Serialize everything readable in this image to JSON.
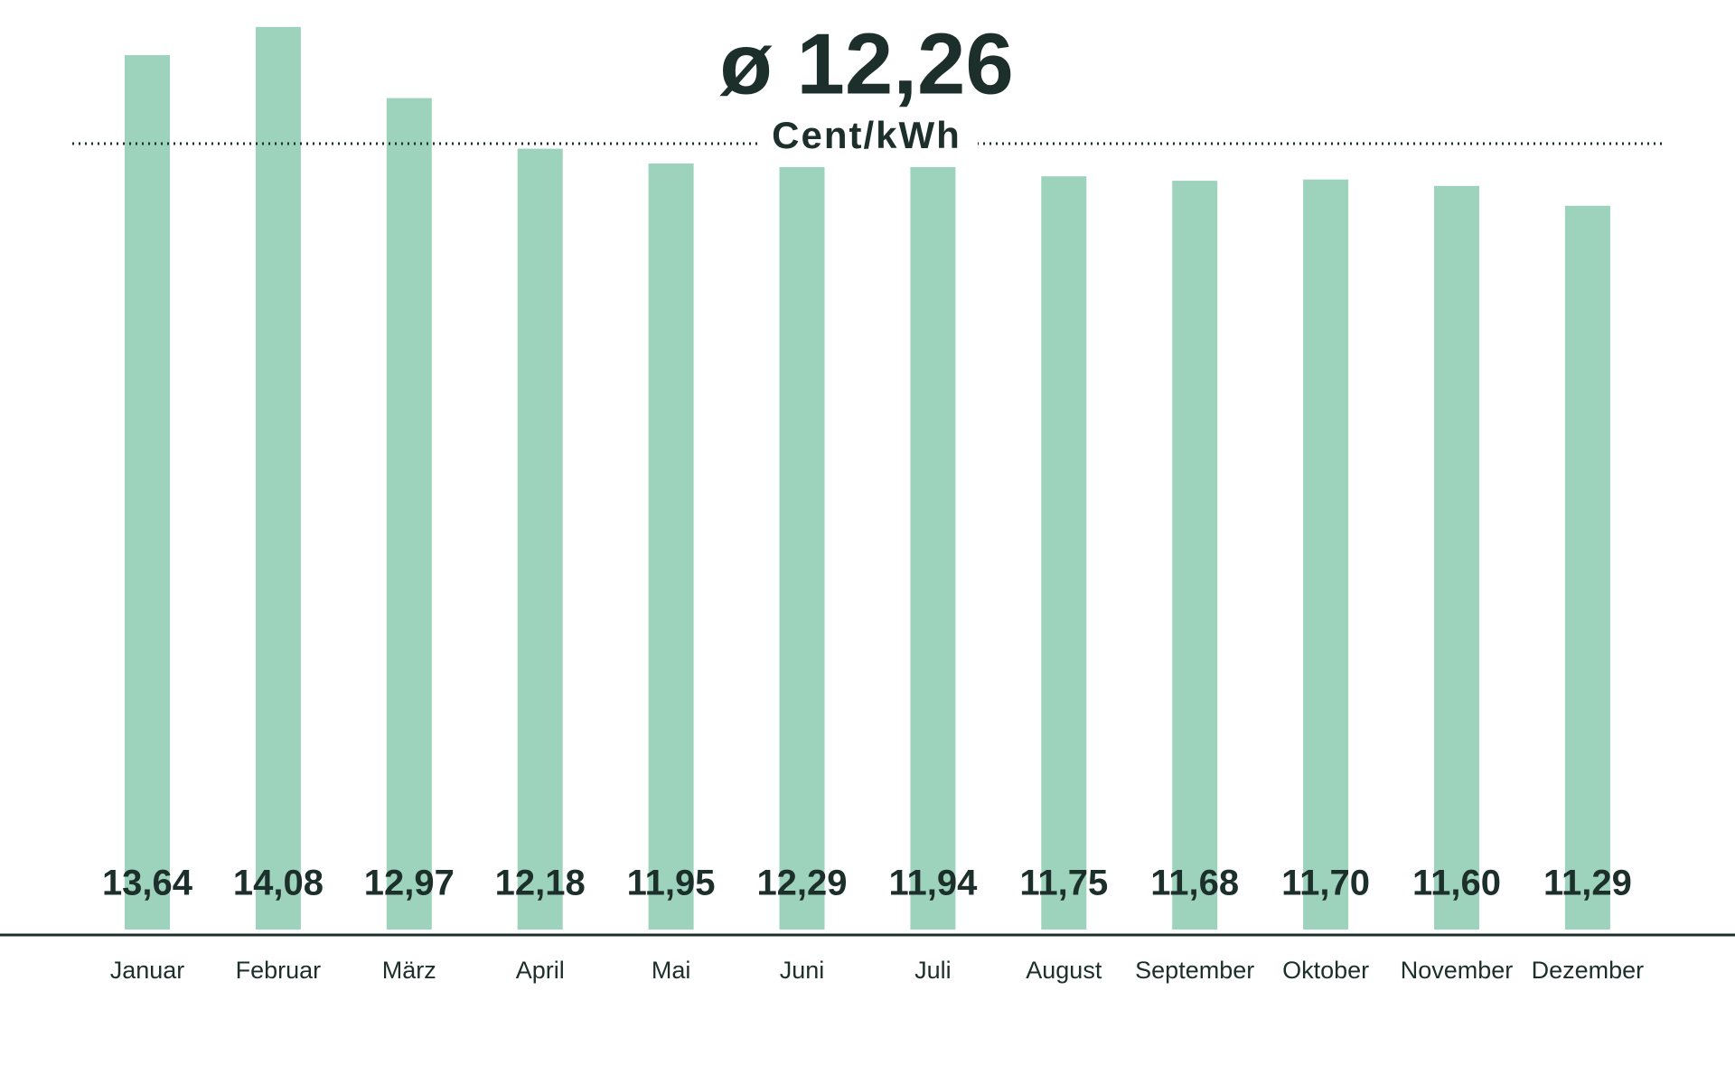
{
  "chart_data": {
    "type": "bar",
    "title": "ø 12,26",
    "subtitle": "Cent/kWh",
    "mean": 12.26,
    "categories": [
      "Januar",
      "Februar",
      "März",
      "April",
      "Mai",
      "Juni",
      "Juli",
      "August",
      "September",
      "Oktober",
      "November",
      "Dezember"
    ],
    "values": [
      13.64,
      14.08,
      12.97,
      12.18,
      11.95,
      12.29,
      11.94,
      11.75,
      11.68,
      11.7,
      11.6,
      11.29
    ],
    "value_labels": [
      "13,64",
      "14,08",
      "12,97",
      "12,18",
      "11,95",
      "12,29",
      "11,94",
      "11,75",
      "11,68",
      "11,70",
      "11,60",
      "11,29"
    ],
    "color": "#9dd3bd",
    "ylim": [
      0,
      14.5
    ]
  }
}
